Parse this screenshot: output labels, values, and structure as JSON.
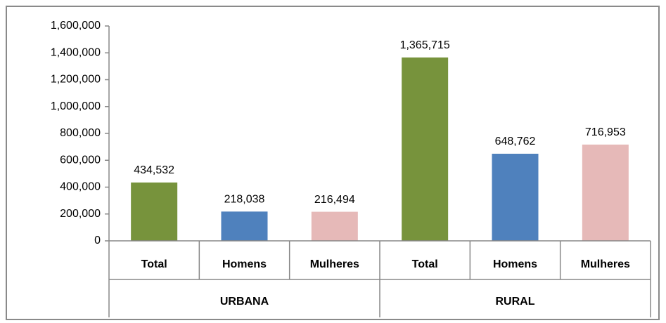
{
  "chart_data": {
    "type": "bar",
    "categories": [
      "Total",
      "Homens",
      "Mulheres",
      "Total",
      "Homens",
      "Mulheres"
    ],
    "groups": [
      "URBANA",
      "RURAL"
    ],
    "values": [
      434532,
      218038,
      216494,
      1365715,
      648762,
      716953
    ],
    "value_labels": [
      "434,532",
      "218,038",
      "216,494",
      "1,365,715",
      "648,762",
      "716,953"
    ],
    "colors": [
      "#77933c",
      "#4f81bd",
      "#e6b9b8",
      "#77933c",
      "#4f81bd",
      "#e6b9b8"
    ],
    "ylim": [
      0,
      1600000
    ],
    "yticks": [
      0,
      {
        "value": 200000,
        "label": "200,000"
      },
      {
        "value": 400000,
        "label": "400,000"
      },
      {
        "value": 600000,
        "label": "600,000"
      },
      {
        "value": 800000,
        "label": "800,000"
      },
      {
        "value": 1000000,
        "label": "1,000,000"
      },
      {
        "value": 1200000,
        "label": "1,200,000"
      },
      {
        "value": 1400000,
        "label": "1,400,000"
      },
      {
        "value": 1600000,
        "label": "1,600,000"
      }
    ]
  }
}
